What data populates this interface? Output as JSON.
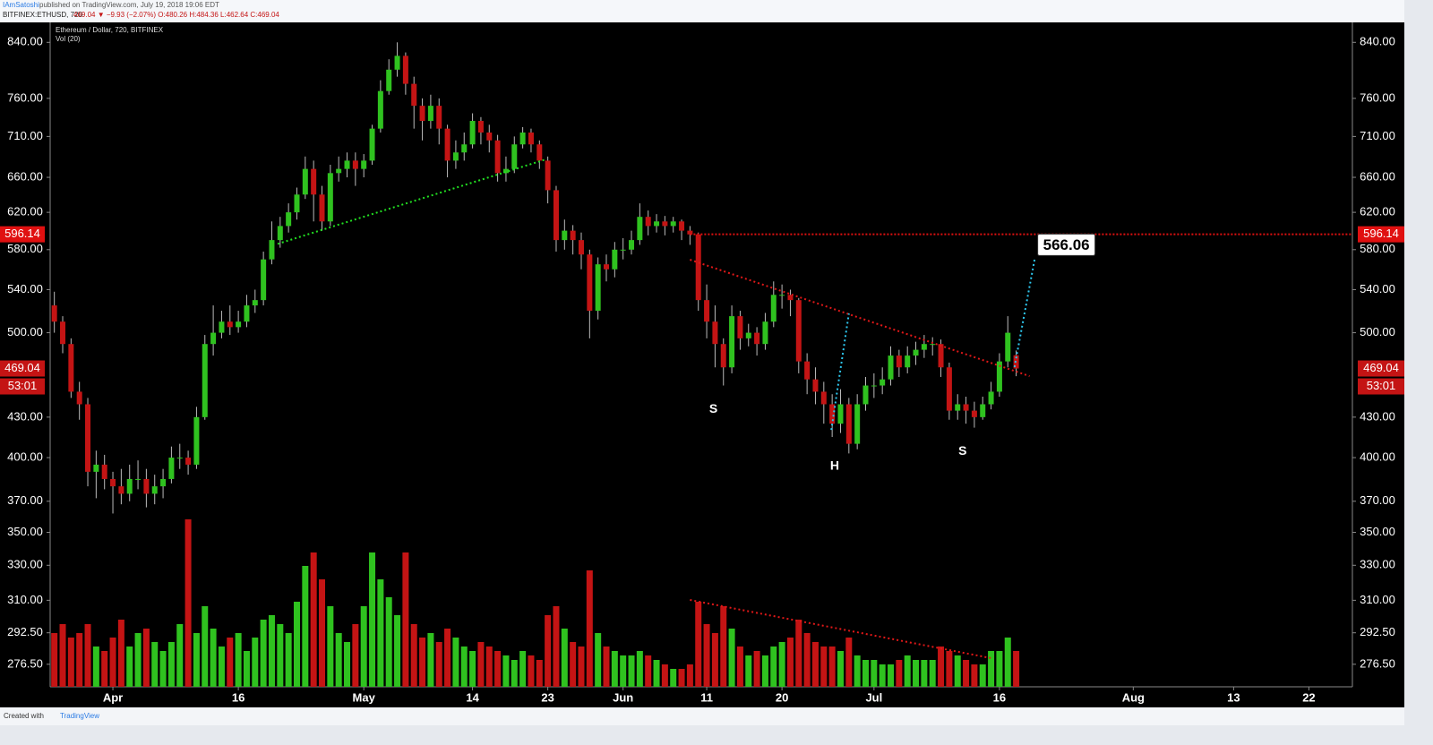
{
  "header": {
    "author": "IAmSatoshi",
    "published": "published on TradingView.com, July 19, 2018 19:06 EDT",
    "symbol": "BITFINEX:ETHUSD, 720",
    "quote": "469.04 ▼ −9.93 (−2.07%) O:480.26 H:484.36 L:462.64 C:469.04"
  },
  "footer": {
    "created": "Created with",
    "brand": "TradingView"
  },
  "chart_data": {
    "type": "candlestick",
    "title": "Ethereum / Dollar, 720, BITFINEX",
    "volume_label": "Vol (20)",
    "up_color": "#2fc21f",
    "down_color": "#c41414",
    "log_scale": true,
    "xlim": [
      83.5,
      239.2
    ],
    "xticks": [
      {
        "value": 91,
        "label": "Apr"
      },
      {
        "value": 106,
        "label": "16"
      },
      {
        "value": 121,
        "label": "May"
      },
      {
        "value": 134,
        "label": "14"
      },
      {
        "value": 143,
        "label": "23"
      },
      {
        "value": 152,
        "label": "Jun"
      },
      {
        "value": 162,
        "label": "11"
      },
      {
        "value": 171,
        "label": "20"
      },
      {
        "value": 182,
        "label": "Jul"
      },
      {
        "value": 197,
        "label": "16"
      },
      {
        "value": 213,
        "label": "Aug"
      },
      {
        "value": 225,
        "label": "13"
      },
      {
        "value": 234,
        "label": "22"
      }
    ],
    "ylim": [
      265.6,
      870.5
    ],
    "yticks": [
      {
        "value": 840,
        "label": "840.00"
      },
      {
        "value": 760,
        "label": "760.00"
      },
      {
        "value": 710,
        "label": "710.00"
      },
      {
        "value": 660,
        "label": "660.00"
      },
      {
        "value": 620,
        "label": "620.00"
      },
      {
        "value": 580,
        "label": "580.00"
      },
      {
        "value": 540,
        "label": "540.00"
      },
      {
        "value": 500,
        "label": "500.00"
      },
      {
        "value": 430,
        "label": "430.00"
      },
      {
        "value": 400,
        "label": "400.00"
      },
      {
        "value": 370,
        "label": "370.00"
      },
      {
        "value": 350,
        "label": "350.00"
      },
      {
        "value": 330,
        "label": "330.00"
      },
      {
        "value": 310,
        "label": "310.00"
      },
      {
        "value": 292.5,
        "label": "292.50"
      },
      {
        "value": 276.5,
        "label": "276.50"
      }
    ],
    "x": [
      84,
      85,
      86,
      87,
      88,
      89,
      90,
      91,
      92,
      93,
      94,
      95,
      96,
      97,
      98,
      99,
      100,
      101,
      102,
      103,
      104,
      105,
      106,
      107,
      108,
      109,
      110,
      111,
      112,
      113,
      114,
      115,
      116,
      117,
      118,
      119,
      120,
      121,
      122,
      123,
      124,
      125,
      126,
      127,
      128,
      129,
      130,
      131,
      132,
      133,
      134,
      135,
      136,
      137,
      138,
      139,
      140,
      141,
      142,
      143,
      144,
      145,
      146,
      147,
      148,
      149,
      150,
      151,
      152,
      153,
      154,
      155,
      156,
      157,
      158,
      159,
      160,
      161,
      162,
      163,
      164,
      165,
      166,
      167,
      168,
      169,
      170,
      171,
      172,
      173,
      174,
      175,
      176,
      177,
      178,
      179,
      180,
      181,
      182,
      183,
      184,
      185,
      186,
      187,
      188,
      189,
      190,
      191,
      192,
      193,
      194,
      195,
      196,
      197,
      198,
      199
    ],
    "open": [
      525,
      510,
      490,
      450,
      440,
      390,
      395,
      385,
      380,
      375,
      385,
      385,
      375,
      380,
      385,
      400,
      400,
      395,
      430,
      490,
      500,
      510,
      505,
      510,
      525,
      530,
      570,
      590,
      605,
      620,
      640,
      670,
      640,
      610,
      665,
      670,
      680,
      670,
      680,
      720,
      770,
      800,
      820,
      780,
      750,
      730,
      750,
      720,
      680,
      690,
      700,
      730,
      715,
      705,
      665,
      670,
      700,
      715,
      700,
      680,
      645,
      590,
      600,
      590,
      575,
      520,
      565,
      560,
      580,
      580,
      590,
      615,
      605,
      610,
      605,
      610,
      600,
      596,
      530,
      510,
      490,
      470,
      515,
      495,
      500,
      490,
      510,
      535,
      535,
      530,
      475,
      460,
      450,
      440,
      425,
      440,
      410,
      440,
      455,
      455,
      460,
      480,
      470,
      480,
      485,
      490,
      490,
      470,
      435,
      440,
      435,
      430,
      440,
      450,
      475,
      480.26
    ],
    "high": [
      538,
      515,
      495,
      458,
      445,
      405,
      402,
      390,
      392,
      395,
      398,
      392,
      388,
      392,
      408,
      410,
      405,
      438,
      498,
      525,
      520,
      525,
      520,
      535,
      540,
      578,
      610,
      615,
      630,
      648,
      685,
      680,
      650,
      675,
      685,
      690,
      690,
      688,
      725,
      785,
      815,
      840,
      825,
      790,
      760,
      765,
      760,
      725,
      705,
      715,
      740,
      735,
      725,
      712,
      685,
      710,
      722,
      720,
      705,
      685,
      650,
      612,
      606,
      598,
      580,
      572,
      575,
      588,
      592,
      600,
      630,
      622,
      618,
      616,
      615,
      612,
      605,
      598,
      545,
      525,
      495,
      525,
      520,
      508,
      505,
      518,
      548,
      545,
      540,
      532,
      482,
      470,
      458,
      448,
      452,
      445,
      448,
      462,
      465,
      470,
      488,
      485,
      488,
      492,
      498,
      496,
      494,
      474,
      448,
      446,
      442,
      446,
      458,
      482,
      515,
      484.36
    ],
    "low": [
      500,
      482,
      445,
      428,
      380,
      372,
      378,
      362,
      368,
      370,
      378,
      366,
      368,
      372,
      382,
      392,
      388,
      392,
      428,
      480,
      495,
      498,
      500,
      505,
      518,
      525,
      565,
      582,
      598,
      612,
      635,
      610,
      600,
      605,
      655,
      660,
      650,
      660,
      675,
      715,
      765,
      790,
      765,
      720,
      705,
      720,
      700,
      660,
      670,
      680,
      695,
      700,
      690,
      655,
      655,
      665,
      695,
      690,
      670,
      630,
      578,
      580,
      575,
      560,
      495,
      512,
      548,
      552,
      570,
      575,
      585,
      595,
      598,
      595,
      598,
      590,
      585,
      520,
      495,
      470,
      455,
      465,
      485,
      488,
      480,
      485,
      505,
      522,
      515,
      465,
      448,
      440,
      425,
      415,
      418,
      403,
      406,
      435,
      445,
      448,
      455,
      462,
      465,
      472,
      478,
      480,
      462,
      428,
      428,
      425,
      422,
      428,
      436,
      446,
      470,
      462.64
    ],
    "close": [
      510,
      490,
      450,
      440,
      390,
      395,
      385,
      380,
      375,
      385,
      385,
      375,
      380,
      385,
      400,
      400,
      395,
      430,
      490,
      500,
      510,
      505,
      510,
      525,
      530,
      570,
      590,
      605,
      620,
      640,
      670,
      640,
      610,
      665,
      670,
      680,
      670,
      680,
      720,
      770,
      800,
      820,
      780,
      750,
      730,
      750,
      720,
      680,
      690,
      700,
      730,
      715,
      705,
      665,
      670,
      700,
      715,
      700,
      680,
      645,
      590,
      600,
      590,
      575,
      520,
      565,
      560,
      580,
      580,
      590,
      615,
      605,
      610,
      605,
      610,
      600,
      596,
      530,
      510,
      490,
      470,
      515,
      495,
      500,
      490,
      510,
      535,
      535,
      530,
      475,
      460,
      450,
      440,
      425,
      440,
      410,
      440,
      455,
      455,
      460,
      480,
      470,
      480,
      485,
      490,
      490,
      470,
      435,
      440,
      435,
      430,
      440,
      450,
      475,
      500,
      469.04
    ],
    "volume": [
      60,
      70,
      55,
      60,
      70,
      45,
      40,
      55,
      75,
      45,
      60,
      65,
      50,
      40,
      50,
      70,
      187,
      60,
      90,
      65,
      45,
      55,
      60,
      40,
      55,
      75,
      80,
      70,
      60,
      95,
      135,
      150,
      120,
      90,
      60,
      50,
      70,
      90,
      150,
      120,
      100,
      80,
      150,
      70,
      55,
      60,
      50,
      65,
      55,
      45,
      40,
      50,
      45,
      40,
      35,
      30,
      40,
      35,
      30,
      80,
      90,
      65,
      50,
      45,
      130,
      60,
      45,
      40,
      35,
      35,
      40,
      35,
      30,
      25,
      20,
      20,
      25,
      95,
      70,
      60,
      90,
      65,
      45,
      35,
      40,
      35,
      45,
      50,
      55,
      75,
      60,
      50,
      45,
      45,
      40,
      55,
      35,
      30,
      30,
      25,
      25,
      30,
      35,
      30,
      30,
      30,
      45,
      40,
      35,
      30,
      25,
      25,
      40,
      40,
      55,
      40
    ],
    "levels": [
      {
        "value": 596.14,
        "label": "596.14",
        "color": "#e01010",
        "from": 160
      }
    ],
    "countdown": "53:01",
    "lines": [
      {
        "color": "#22e022",
        "points": [
          [
            110.7,
            586
          ],
          [
            142.8,
            681.6
          ]
        ]
      },
      {
        "color": "#e01818",
        "points": [
          [
            160,
            569.7
          ],
          [
            200.6,
            462.7
          ]
        ]
      },
      {
        "color": "#2ec8f0",
        "points": [
          [
            176.9,
            420.3
          ],
          [
            179,
            517.5
          ]
        ]
      },
      {
        "color": "#2ec8f0",
        "points": [
          [
            198.8,
            470.2
          ],
          [
            201.2,
            569.7
          ]
        ]
      }
    ],
    "volume_lines": [
      {
        "color": "#e01818",
        "points": [
          [
            160,
            97
          ],
          [
            196,
            32
          ]
        ]
      }
    ],
    "annotations": [
      {
        "text": "S",
        "x": 162.8,
        "y": 436
      },
      {
        "text": "H",
        "x": 177.3,
        "y": 393.7
      },
      {
        "text": "S",
        "x": 192.6,
        "y": 404.5
      }
    ],
    "target": {
      "value": 566.06,
      "x": 205,
      "y": 585
    }
  }
}
